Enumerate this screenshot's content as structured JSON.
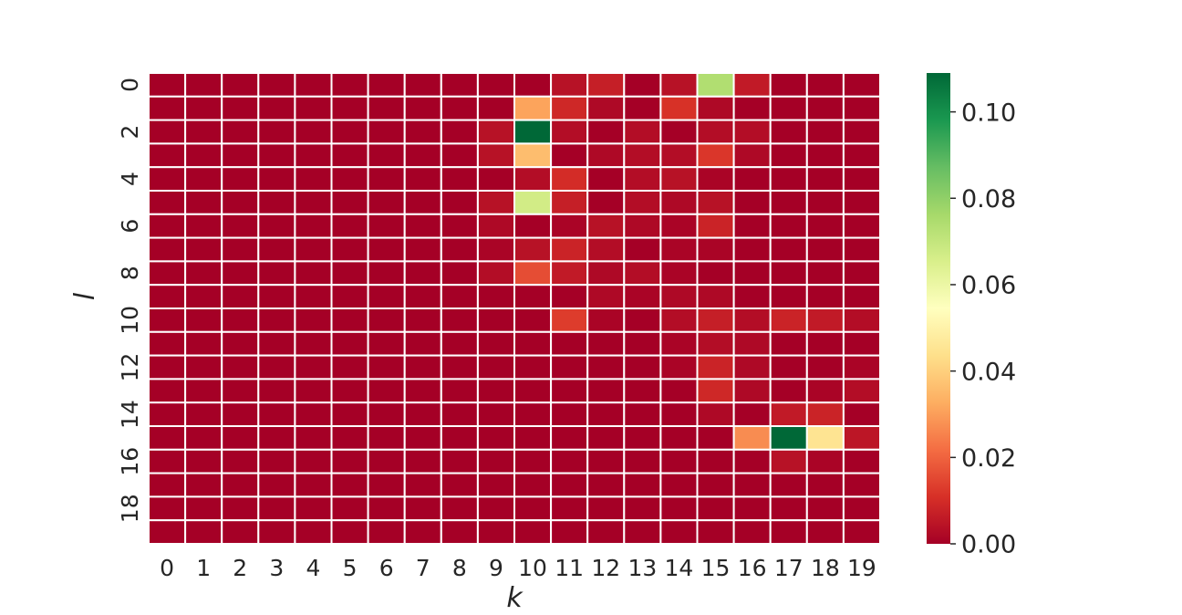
{
  "chart_data": {
    "type": "heatmap",
    "title": "",
    "xlabel": "k",
    "ylabel": "l",
    "x_ticks": [
      "0",
      "1",
      "2",
      "3",
      "4",
      "5",
      "6",
      "7",
      "8",
      "9",
      "10",
      "11",
      "12",
      "13",
      "14",
      "15",
      "16",
      "17",
      "18",
      "19"
    ],
    "y_ticks": [
      "0",
      "2",
      "4",
      "6",
      "8",
      "10",
      "12",
      "14",
      "16",
      "18"
    ],
    "colormap": "RdYlGn",
    "vmin": 0.0,
    "vmax": 0.109,
    "colorbar_ticks": [
      "0.00",
      "0.02",
      "0.04",
      "0.06",
      "0.08",
      "0.10"
    ],
    "cell_border_color": "#ffffff",
    "grid": false,
    "values": [
      [
        0,
        0,
        0,
        0,
        0,
        0,
        0,
        0,
        0,
        0,
        0,
        0.004,
        0.007,
        0,
        0.004,
        0.074,
        0.006,
        0,
        0,
        0
      ],
      [
        0,
        0,
        0,
        0,
        0,
        0,
        0,
        0,
        0,
        0,
        0.031,
        0.009,
        0.002,
        0,
        0.011,
        0.002,
        0,
        0,
        0,
        0
      ],
      [
        0,
        0,
        0,
        0,
        0,
        0,
        0,
        0,
        0,
        0.004,
        0.109,
        0.003,
        0,
        0.003,
        0,
        0.003,
        0.003,
        0,
        0,
        0
      ],
      [
        0,
        0,
        0,
        0,
        0,
        0,
        0,
        0,
        0,
        0.004,
        0.036,
        0,
        0.002,
        0.003,
        0.003,
        0.012,
        0.002,
        0,
        0,
        0
      ],
      [
        0,
        0,
        0,
        0,
        0,
        0,
        0,
        0,
        0,
        0,
        0.003,
        0.01,
        0,
        0.003,
        0.004,
        0.001,
        0,
        0,
        0,
        0
      ],
      [
        0,
        0,
        0,
        0,
        0,
        0,
        0,
        0,
        0,
        0.004,
        0.067,
        0.007,
        0,
        0.003,
        0.002,
        0.004,
        0,
        0,
        0,
        0
      ],
      [
        0,
        0,
        0,
        0,
        0,
        0,
        0,
        0,
        0,
        0.002,
        0,
        0.001,
        0.004,
        0.002,
        0.001,
        0.008,
        0,
        0,
        0,
        0
      ],
      [
        0,
        0,
        0,
        0,
        0,
        0,
        0,
        0,
        0,
        0.001,
        0.004,
        0.008,
        0.003,
        0,
        0.001,
        0.001,
        0,
        0,
        0,
        0
      ],
      [
        0,
        0,
        0,
        0,
        0,
        0,
        0,
        0,
        0,
        0.003,
        0.016,
        0.006,
        0.002,
        0.003,
        0.001,
        0,
        0,
        0,
        0,
        0
      ],
      [
        0,
        0,
        0,
        0,
        0,
        0,
        0,
        0,
        0,
        0,
        0,
        0,
        0.002,
        0.001,
        0.002,
        0.002,
        0,
        0,
        0,
        0
      ],
      [
        0,
        0,
        0,
        0,
        0,
        0,
        0,
        0,
        0,
        0,
        0,
        0.013,
        0.001,
        0,
        0.003,
        0.007,
        0.003,
        0.008,
        0.006,
        0.003
      ],
      [
        0,
        0,
        0,
        0,
        0,
        0,
        0,
        0,
        0,
        0,
        0,
        0,
        0,
        0,
        0.001,
        0.003,
        0.002,
        0,
        0,
        0
      ],
      [
        0,
        0,
        0,
        0,
        0,
        0,
        0,
        0,
        0,
        0,
        0,
        0,
        0,
        0,
        0.001,
        0.008,
        0.002,
        0,
        0,
        0.001
      ],
      [
        0,
        0,
        0,
        0,
        0,
        0,
        0,
        0,
        0,
        0,
        0,
        0,
        0,
        0,
        0,
        0.009,
        0.002,
        0,
        0.001,
        0.003
      ],
      [
        0,
        0,
        0,
        0,
        0,
        0,
        0,
        0,
        0,
        0,
        0,
        0,
        0,
        0,
        0,
        0.002,
        0,
        0.006,
        0.008,
        0
      ],
      [
        0,
        0,
        0,
        0,
        0,
        0,
        0,
        0,
        0,
        0,
        0,
        0,
        0,
        0,
        0,
        0,
        0.027,
        0.109,
        0.045,
        0.005
      ],
      [
        0,
        0,
        0,
        0,
        0,
        0,
        0,
        0,
        0,
        0,
        0,
        0,
        0,
        0,
        0,
        0,
        0,
        0.004,
        0.001,
        0
      ],
      [
        0,
        0,
        0,
        0,
        0,
        0,
        0,
        0,
        0,
        0,
        0,
        0,
        0,
        0,
        0,
        0,
        0,
        0,
        0,
        0
      ],
      [
        0,
        0,
        0,
        0,
        0,
        0,
        0,
        0,
        0,
        0,
        0,
        0,
        0,
        0,
        0,
        0,
        0,
        0,
        0,
        0
      ],
      [
        0,
        0,
        0,
        0,
        0,
        0,
        0,
        0,
        0,
        0,
        0,
        0,
        0,
        0,
        0,
        0,
        0,
        0,
        0,
        0
      ]
    ]
  }
}
